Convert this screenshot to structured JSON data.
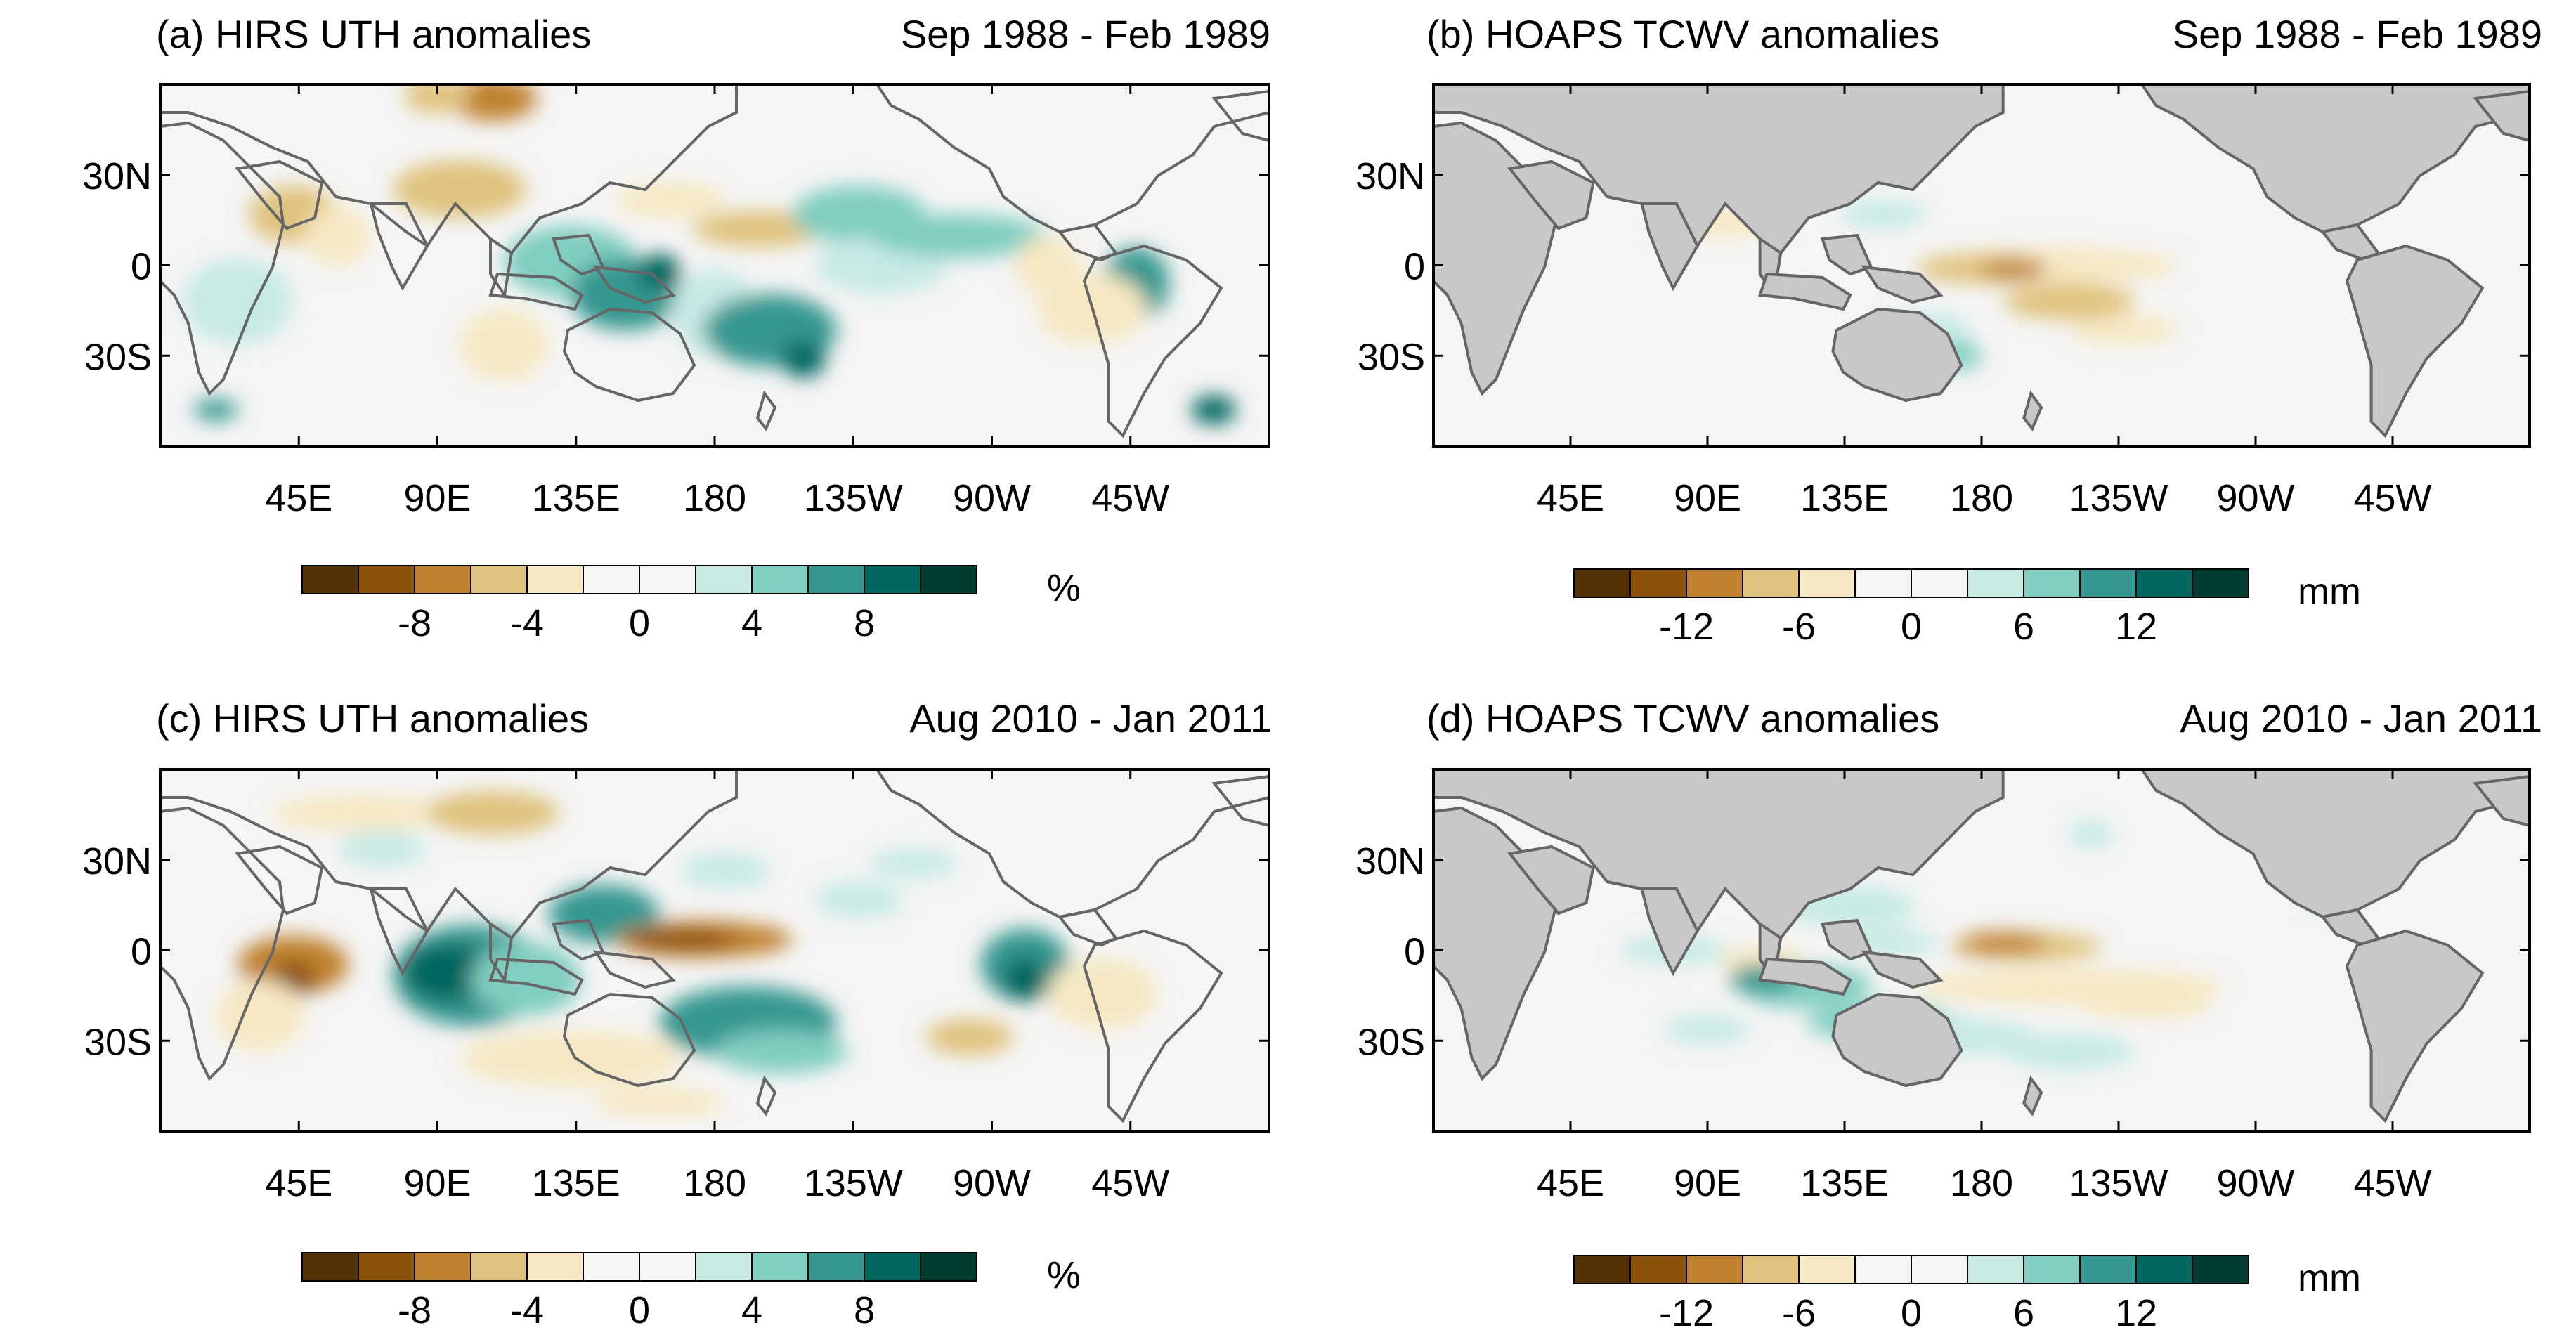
{
  "figure": {
    "panels": [
      {
        "id": "a",
        "title": "(a) HIRS UTH anomalies",
        "period": "Sep 1988 - Feb 1989",
        "variable": "UTH",
        "dataset": "HIRS",
        "lat_ticks": [
          "30N",
          "0",
          "30S"
        ],
        "lon_ticks": [
          "45E",
          "90E",
          "135E",
          "180",
          "135W",
          "90W",
          "45W"
        ],
        "colorbar": {
          "labels": [
            "-8",
            "-4",
            "0",
            "4",
            "8"
          ],
          "unit": "%"
        },
        "land_masked": false
      },
      {
        "id": "b",
        "title": "(b) HOAPS TCWV anomalies",
        "period": "Sep 1988 - Feb 1989",
        "variable": "TCWV",
        "dataset": "HOAPS",
        "lat_ticks": [
          "30N",
          "0",
          "30S"
        ],
        "lon_ticks": [
          "45E",
          "90E",
          "135E",
          "180",
          "135W",
          "90W",
          "45W"
        ],
        "colorbar": {
          "labels": [
            "-12",
            "-6",
            "0",
            "6",
            "12"
          ],
          "unit": "mm"
        },
        "land_masked": true
      },
      {
        "id": "c",
        "title": "(c) HIRS UTH anomalies",
        "period": "Aug 2010 - Jan 2011",
        "variable": "UTH",
        "dataset": "HIRS",
        "lat_ticks": [
          "30N",
          "0",
          "30S"
        ],
        "lon_ticks": [
          "45E",
          "90E",
          "135E",
          "180",
          "135W",
          "90W",
          "45W"
        ],
        "colorbar": {
          "labels": [
            "-8",
            "-4",
            "0",
            "4",
            "8"
          ],
          "unit": "%"
        },
        "land_masked": false
      },
      {
        "id": "d",
        "title": "(d) HOAPS TCWV anomalies",
        "period": "Aug 2010 - Jan 2011",
        "variable": "TCWV",
        "dataset": "HOAPS",
        "lat_ticks": [
          "30N",
          "0",
          "30S"
        ],
        "lon_ticks": [
          "45E",
          "90E",
          "135E",
          "180",
          "135W",
          "90W",
          "45W"
        ],
        "colorbar": {
          "labels": [
            "-12",
            "-6",
            "0",
            "6",
            "12"
          ],
          "unit": "mm"
        },
        "land_masked": true
      }
    ],
    "palette": [
      "#543005",
      "#8c510a",
      "#bf812d",
      "#dfc27d",
      "#f6e8c3",
      "#f5f5f5",
      "#f5f5f5",
      "#c7eae5",
      "#80cdc1",
      "#35978f",
      "#01665e",
      "#003c30"
    ],
    "colors": {
      "land": "#c8c8c8",
      "coast": "#666666",
      "ocean": "#f5f5f5"
    }
  }
}
